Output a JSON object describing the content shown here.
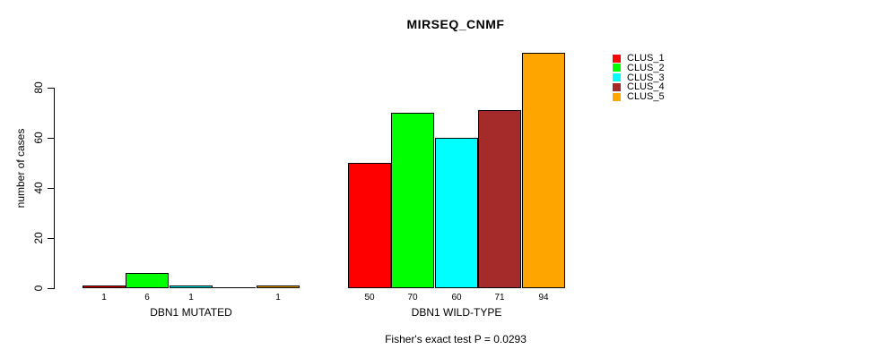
{
  "chart_data": {
    "type": "bar",
    "title": "MIRSEQ_CNMF",
    "ylabel": "number of cases",
    "xlabel": "",
    "ylim": [
      0,
      94
    ],
    "yticks": [
      0,
      20,
      40,
      60,
      80
    ],
    "grid": false,
    "categories": [
      "DBN1 MUTATED",
      "DBN1 WILD-TYPE"
    ],
    "series": [
      {
        "name": "CLUS_1",
        "color": "#FF0000",
        "values": [
          1,
          50
        ],
        "value_labels": [
          "1",
          "50"
        ]
      },
      {
        "name": "CLUS_2",
        "color": "#00FF00",
        "values": [
          6,
          70
        ],
        "value_labels": [
          "6",
          "70"
        ]
      },
      {
        "name": "CLUS_3",
        "color": "#00FFFF",
        "values": [
          1,
          60
        ],
        "value_labels": [
          "1",
          "60"
        ]
      },
      {
        "name": "CLUS_4",
        "color": "#A52A2A",
        "values": [
          0,
          71
        ],
        "value_labels": [
          "",
          "71"
        ]
      },
      {
        "name": "CLUS_5",
        "color": "#FFA500",
        "values": [
          1,
          94
        ],
        "value_labels": [
          "1",
          "94"
        ]
      }
    ],
    "legend": {
      "position": "right",
      "entries": [
        {
          "label": "CLUS_1",
          "color": "#FF0000"
        },
        {
          "label": "CLUS_2",
          "color": "#00FF00"
        },
        {
          "label": "CLUS_3",
          "color": "#00FFFF"
        },
        {
          "label": "CLUS_4",
          "color": "#A52A2A"
        },
        {
          "label": "CLUS_5",
          "color": "#FFA500"
        }
      ]
    },
    "footer": "Fisher's exact test P = 0.0293",
    "axis_color": "#000000",
    "bar_border_color": "#000000"
  }
}
